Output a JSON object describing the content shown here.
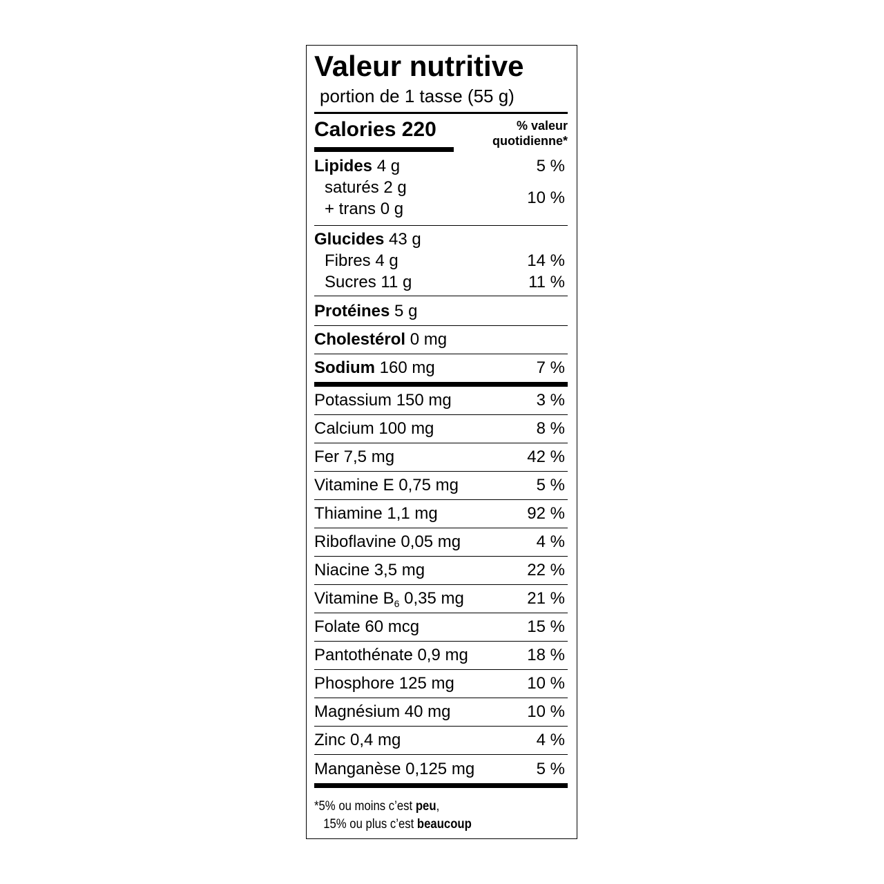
{
  "title": "Valeur nutritive",
  "serving": "portion de 1 tasse (55 g)",
  "calories": {
    "label": "Calories",
    "value": "220"
  },
  "dv_header": {
    "line1": "% valeur",
    "line2": "quotidienne*"
  },
  "fat": {
    "name": "Lipides",
    "amount": "4 g",
    "dv": "5 %",
    "saturated": "saturés 2 g",
    "trans": "+ trans 0 g",
    "sat_trans_dv": "10 %"
  },
  "carbs": {
    "name": "Glucides",
    "amount": "43 g",
    "fibre": {
      "name": "Fibres",
      "amount": "4 g",
      "dv": "14 %"
    },
    "sugars": {
      "name": "Sucres",
      "amount": "11 g",
      "dv": "11 %"
    }
  },
  "protein": {
    "name": "Protéines",
    "amount": "5 g"
  },
  "cholesterol": {
    "name": "Cholestérol",
    "amount": "0 mg"
  },
  "sodium": {
    "name": "Sodium",
    "amount": "160 mg",
    "dv": "7 %"
  },
  "micronutrients": [
    {
      "name": "Potassium 150 mg",
      "dv": "3 %"
    },
    {
      "name": "Calcium 100 mg",
      "dv": "8 %"
    },
    {
      "name": "Fer 7,5 mg",
      "dv": "42 %"
    },
    {
      "name": "Vitamine E 0,75 mg",
      "dv": "5 %"
    },
    {
      "name": "Thiamine 1,1 mg",
      "dv": "92 %"
    },
    {
      "name": "Riboflavine 0,05 mg",
      "dv": "4 %"
    },
    {
      "name": "Niacine 3,5 mg",
      "dv": "22 %"
    },
    {
      "name": "Vitamine B",
      "sub": "6",
      "amount": " 0,35 mg",
      "dv": "21 %"
    },
    {
      "name": "Folate 60 mcg",
      "dv": "15 %"
    },
    {
      "name": "Pantothénate 0,9 mg",
      "dv": "18 %"
    },
    {
      "name": "Phosphore 125 mg",
      "dv": "10 %"
    },
    {
      "name": "Magnésium 40 mg",
      "dv": "10 %"
    },
    {
      "name": "Zinc 0,4 mg",
      "dv": "4 %"
    },
    {
      "name": "Manganèse 0,125 mg",
      "dv": "5 %"
    }
  ],
  "footnote": {
    "line1_prefix": "*5% ou moins c’est ",
    "line1_bold": "peu",
    "line1_suffix": ",",
    "line2_prefix": "15% ou plus c’est ",
    "line2_bold": "beaucoup"
  }
}
